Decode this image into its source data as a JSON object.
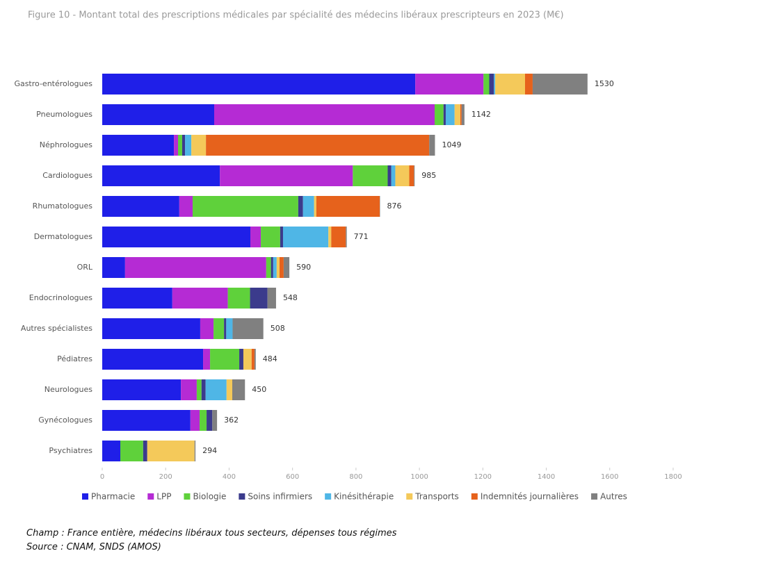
{
  "chart_data": {
    "type": "stacked_barh",
    "title": "Figure 10 - Montant total des prescriptions médicales par spécialité des médecins libéraux prescripteurs en 2023 (M€)",
    "categories": [
      "Gastro-entérologues",
      "Pneumologues",
      "Néphrologues",
      "Cardiologues",
      "Rhumatologues",
      "Dermatologues",
      "ORL",
      "Endocrinologues",
      "Autres spécialistes",
      "Pédiatres",
      "Neurologues",
      "Gynécologues",
      "Psychiatres"
    ],
    "totals": [
      1530,
      1142,
      1049,
      985,
      876,
      771,
      590,
      548,
      508,
      484,
      450,
      362,
      294
    ],
    "series": [
      {
        "name": "Pharmacie",
        "color": "#1f1fe8",
        "values": [
          987,
          353,
          226,
          371,
          243,
          467,
          72,
          221,
          309,
          318,
          248,
          278,
          57
        ]
      },
      {
        "name": "LPP",
        "color": "#b52bd4",
        "values": [
          215,
          695,
          13,
          419,
          42,
          33,
          445,
          175,
          42,
          22,
          50,
          29,
          0
        ]
      },
      {
        "name": "Biologie",
        "color": "#5fd13b",
        "values": [
          18,
          28,
          13,
          110,
          333,
          61,
          15,
          70,
          33,
          92,
          15,
          22,
          72
        ]
      },
      {
        "name": "Soins infirmiers",
        "color": "#3b3b8c",
        "values": [
          15,
          7,
          9,
          11,
          15,
          9,
          7,
          55,
          7,
          13,
          13,
          18,
          13
        ]
      },
      {
        "name": "Kinésithérapie",
        "color": "#4fb6e6",
        "values": [
          4,
          28,
          20,
          13,
          35,
          143,
          11,
          0,
          20,
          0,
          66,
          0,
          0
        ]
      },
      {
        "name": "Transports",
        "color": "#f4c95a",
        "values": [
          94,
          18,
          46,
          44,
          7,
          9,
          9,
          0,
          0,
          26,
          18,
          0,
          149
        ]
      },
      {
        "name": "Indemnités journalières",
        "color": "#e6621c",
        "values": [
          24,
          4,
          704,
          15,
          200,
          46,
          13,
          0,
          0,
          9,
          0,
          0,
          0
        ]
      },
      {
        "name": "Autres",
        "color": "#808080",
        "values": [
          173,
          9,
          18,
          2,
          1,
          3,
          18,
          27,
          97,
          4,
          40,
          15,
          3
        ]
      }
    ],
    "xlim": [
      0,
      1800
    ],
    "xticks": [
      0,
      200,
      400,
      600,
      800,
      1000,
      1200,
      1400,
      1600,
      1800
    ],
    "legend": "bottom"
  },
  "notes": {
    "champ": "Champ : France entière, médecins libéraux tous secteurs, dépenses tous régimes",
    "source": "Source : CNAM, SNDS (AMOS)"
  }
}
